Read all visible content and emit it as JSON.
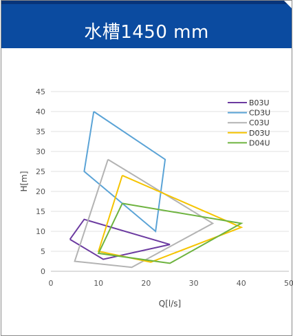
{
  "header": {
    "title": "水槽1450 mm"
  },
  "chart_data": {
    "type": "line",
    "xlabel": "Q[l/s]",
    "ylabel": "H[m]",
    "xlim": [
      0,
      50
    ],
    "ylim": [
      0,
      45
    ],
    "xticks": [
      0,
      10,
      20,
      30,
      40,
      50
    ],
    "yticks": [
      0,
      5,
      10,
      15,
      20,
      25,
      30,
      35,
      40,
      45
    ],
    "grid": true,
    "legend_position": "top-right",
    "series": [
      {
        "name": "B03U",
        "color": "#6b3aa0",
        "points": [
          [
            4,
            8
          ],
          [
            7,
            13
          ],
          [
            25,
            6.7
          ],
          [
            11,
            3
          ],
          [
            4,
            8
          ]
        ]
      },
      {
        "name": "CD3U",
        "color": "#5aa3d6",
        "points": [
          [
            9,
            40
          ],
          [
            24,
            28
          ],
          [
            22,
            10
          ],
          [
            7,
            25
          ],
          [
            9,
            40
          ]
        ]
      },
      {
        "name": "C03U",
        "color": "#b3b3b3",
        "points": [
          [
            12,
            28
          ],
          [
            34,
            12
          ],
          [
            17,
            1
          ],
          [
            5,
            2.5
          ],
          [
            12,
            28
          ]
        ]
      },
      {
        "name": "D03U",
        "color": "#f5c400",
        "points": [
          [
            15,
            24
          ],
          [
            40,
            11
          ],
          [
            21,
            2.3
          ],
          [
            10,
            5
          ],
          [
            15,
            24
          ]
        ]
      },
      {
        "name": "D04U",
        "color": "#6db33f",
        "points": [
          [
            15,
            17
          ],
          [
            40,
            12
          ],
          [
            25,
            2
          ],
          [
            10,
            4.5
          ],
          [
            15,
            17
          ]
        ]
      }
    ]
  }
}
